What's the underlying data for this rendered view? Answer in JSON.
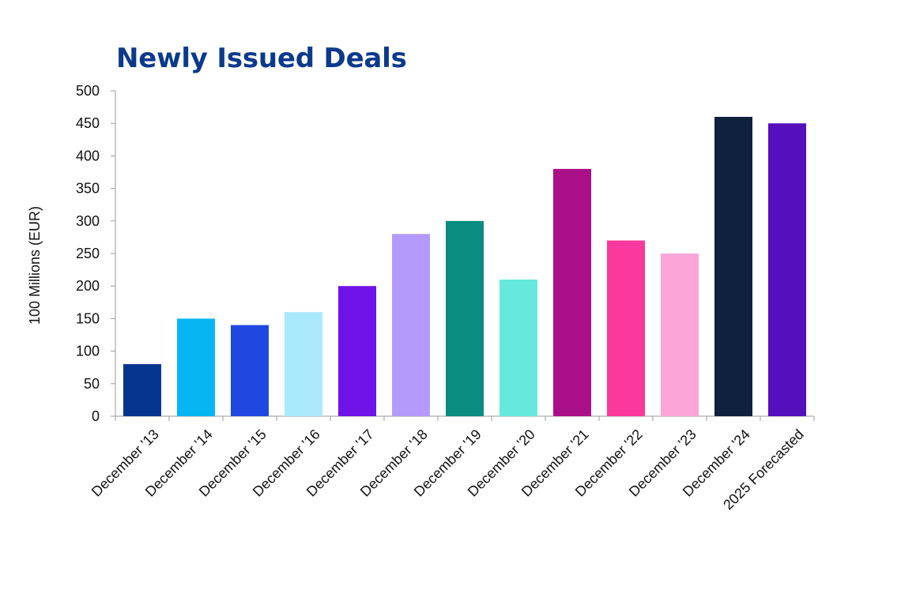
{
  "chart_data": {
    "type": "bar",
    "title": "Newly Issued Deals",
    "xlabel": "",
    "ylabel": "100 Millions (EUR)",
    "ylim": [
      0,
      500
    ],
    "yticks": [
      0,
      50,
      100,
      150,
      200,
      250,
      300,
      350,
      400,
      450,
      500
    ],
    "grid": false,
    "legend": "none",
    "categories": [
      "December '13",
      "December '14",
      "December '15",
      "December '16",
      "December '17",
      "December '18",
      "December '19",
      "December '20",
      "December '21",
      "December '22",
      "December '23",
      "December '24",
      "2025 Forecasted"
    ],
    "values": [
      80,
      150,
      140,
      160,
      200,
      280,
      300,
      210,
      380,
      270,
      250,
      460,
      450
    ],
    "colors": [
      "#06358f",
      "#06b6f2",
      "#1f48e0",
      "#abe9fc",
      "#6f14e8",
      "#b49afb",
      "#0a8c80",
      "#66e9dc",
      "#a90f86",
      "#fb389b",
      "#fca5d8",
      "#0f213d",
      "#550fbd"
    ]
  }
}
